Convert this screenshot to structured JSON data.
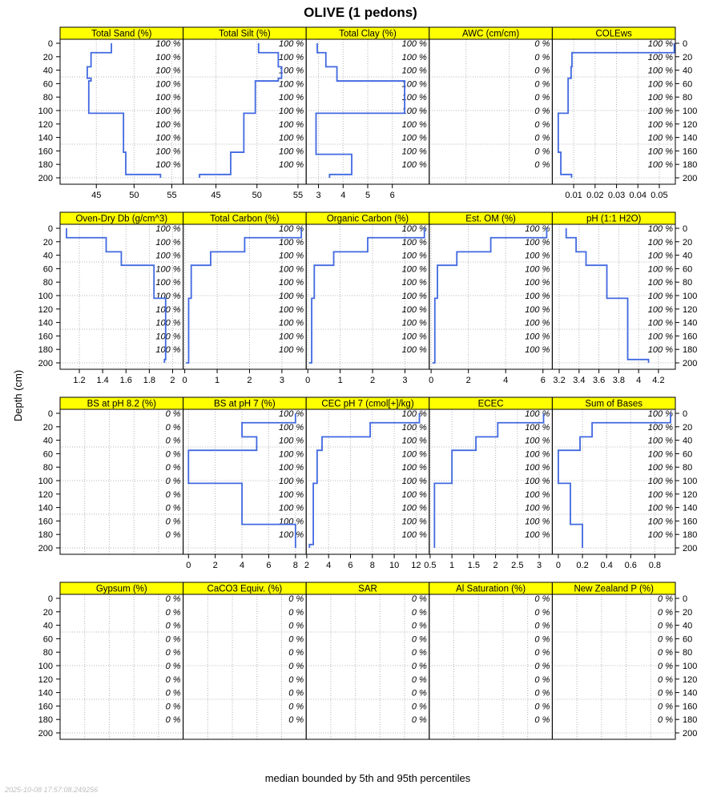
{
  "chart_data": {
    "type": "line",
    "title": "OLIVE (1 pedons)",
    "ylabel": "Depth (cm)",
    "caption": "median bounded by 5th and 95th percentiles",
    "timestamp": "2025-10-08 17:57:08.249256",
    "line_color": "#4169e1",
    "strip_color": "#ffff00",
    "grid": true,
    "ylim": [
      0,
      200
    ],
    "y_ticks": [
      0,
      20,
      40,
      60,
      80,
      100,
      120,
      140,
      160,
      180,
      200
    ],
    "label_depths": [
      0,
      20,
      40,
      60,
      80,
      100,
      120,
      140,
      160,
      180
    ],
    "panels": [
      {
        "label": "Total Sand (%)",
        "xlim": [
          40.2,
          56.5
        ],
        "xticks": [
          45,
          50,
          55
        ],
        "xgrid": [
          45,
          50,
          55
        ],
        "pct": "100 %",
        "steps": [
          [
            0,
            47
          ],
          [
            14,
            44.3
          ],
          [
            35,
            43.8
          ],
          [
            52,
            44.3
          ],
          [
            56,
            44
          ],
          [
            104,
            48.6
          ],
          [
            162,
            48.9
          ],
          [
            195,
            53.5
          ],
          [
            200,
            53.5
          ]
        ]
      },
      {
        "label": "Total Silt (%)",
        "xlim": [
          41,
          56
        ],
        "xticks": [
          45,
          50,
          55
        ],
        "xgrid": [
          45,
          50,
          55
        ],
        "pct": "100 %",
        "steps": [
          [
            0,
            50.2
          ],
          [
            14,
            52.6
          ],
          [
            35,
            53
          ],
          [
            52,
            52.6
          ],
          [
            56,
            49.8
          ],
          [
            104,
            48.4
          ],
          [
            162,
            46.8
          ],
          [
            195,
            43
          ],
          [
            200,
            43
          ]
        ]
      },
      {
        "label": "Total Clay (%)",
        "xlim": [
          2.5,
          7.5
        ],
        "xticks": [
          3,
          4,
          5,
          6
        ],
        "xgrid": [
          3,
          4,
          5,
          6
        ],
        "pct": "100 %",
        "steps": [
          [
            0,
            2.95
          ],
          [
            14,
            3.3
          ],
          [
            35,
            3.75
          ],
          [
            56,
            6.5
          ],
          [
            104,
            2.9
          ],
          [
            165,
            4.35
          ],
          [
            195,
            3.45
          ],
          [
            200,
            3.45
          ]
        ]
      },
      {
        "label": "AWC (cm/cm)",
        "xlim": [
          0,
          1
        ],
        "xticks": [],
        "xgrid": [
          0.3,
          0.65
        ],
        "pct": "0 %",
        "steps": []
      },
      {
        "label": "COLEws",
        "xlim": [
          0,
          0.0575
        ],
        "xticks": [
          0.01,
          0.02,
          0.03,
          0.04,
          0.05
        ],
        "xgrid": [
          0.01,
          0.02,
          0.03,
          0.04,
          0.05
        ],
        "pct": "100 %",
        "steps": [
          [
            0,
            0.057
          ],
          [
            14,
            0.0092
          ],
          [
            35,
            0.0088
          ],
          [
            52,
            0.0074
          ],
          [
            104,
            0.0028
          ],
          [
            162,
            0.004
          ],
          [
            195,
            0.009
          ],
          [
            200,
            0.009
          ]
        ]
      },
      {
        "label": "Oven-Dry Db (g/cm^3)",
        "xlim": [
          1.035,
          2.09
        ],
        "xticks": [
          1.2,
          1.4,
          1.6,
          1.8,
          2.0
        ],
        "xgrid": [
          1.2,
          1.4,
          1.6,
          1.8,
          2.0
        ],
        "pct": "100 %",
        "steps": [
          [
            0,
            1.09
          ],
          [
            14,
            1.43
          ],
          [
            35,
            1.56
          ],
          [
            55,
            1.84
          ],
          [
            104,
            1.94
          ],
          [
            195,
            1.93
          ],
          [
            200,
            1.93
          ]
        ]
      },
      {
        "label": "Total Carbon (%)",
        "xlim": [
          -0.05,
          3.75
        ],
        "xticks": [
          0,
          1,
          2,
          3
        ],
        "xgrid": [
          0,
          1,
          2,
          3
        ],
        "pct": "100 %",
        "steps": [
          [
            0,
            3.6
          ],
          [
            14,
            1.85
          ],
          [
            35,
            0.8
          ],
          [
            55,
            0.2
          ],
          [
            104,
            0.12
          ],
          [
            200,
            0.04
          ]
        ]
      },
      {
        "label": "Organic Carbon (%)",
        "xlim": [
          -0.05,
          3.75
        ],
        "xticks": [
          0,
          1,
          2,
          3
        ],
        "xgrid": [
          0,
          1,
          2,
          3
        ],
        "pct": "100 %",
        "steps": [
          [
            0,
            3.6
          ],
          [
            14,
            1.85
          ],
          [
            35,
            0.8
          ],
          [
            55,
            0.2
          ],
          [
            104,
            0.12
          ],
          [
            200,
            0.04
          ]
        ]
      },
      {
        "label": "Est. OM (%)",
        "xlim": [
          -0.1,
          6.5
        ],
        "xticks": [
          0,
          2,
          4,
          6
        ],
        "xgrid": [
          0,
          2,
          4,
          6
        ],
        "pct": "100 %",
        "steps": [
          [
            0,
            6.2
          ],
          [
            14,
            3.2
          ],
          [
            35,
            1.38
          ],
          [
            55,
            0.34
          ],
          [
            104,
            0.2
          ],
          [
            200,
            0.08
          ]
        ]
      },
      {
        "label": "pH (1:1 H2O)",
        "xlim": [
          3.13,
          4.37
        ],
        "xticks": [
          3.2,
          3.4,
          3.6,
          3.8,
          4.0,
          4.2
        ],
        "xgrid": [
          3.2,
          3.4,
          3.6,
          3.8,
          4.0,
          4.2
        ],
        "pct": "100 %",
        "steps": [
          [
            0,
            3.27
          ],
          [
            14,
            3.37
          ],
          [
            35,
            3.47
          ],
          [
            55,
            3.68
          ],
          [
            104,
            3.89
          ],
          [
            195,
            4.1
          ],
          [
            200,
            4.1
          ]
        ]
      },
      {
        "label": "BS at pH 8.2 (%)",
        "xlim": [
          0,
          1
        ],
        "xticks": [],
        "xgrid": [
          0.2,
          0.4,
          0.6,
          0.8
        ],
        "pct": "0 %",
        "steps": []
      },
      {
        "label": "BS at pH 7 (%)",
        "xlim": [
          -0.4,
          8.8
        ],
        "xticks": [
          0,
          2,
          4,
          6,
          8
        ],
        "xgrid": [
          0,
          2,
          4,
          6,
          8
        ],
        "pct": "100 %",
        "steps": [
          [
            0,
            8
          ],
          [
            14,
            4
          ],
          [
            35,
            5.1
          ],
          [
            55,
            0
          ],
          [
            104,
            4
          ],
          [
            165,
            8
          ],
          [
            200,
            8
          ]
        ]
      },
      {
        "label": "CEC pH 7 (cmol[+]/kg)",
        "xlim": [
          1.95,
          13.2
        ],
        "xticks": [
          2,
          4,
          6,
          8,
          10,
          12
        ],
        "xgrid": [
          4,
          6,
          8,
          10,
          12
        ],
        "pct": "100 %",
        "steps": [
          [
            0,
            12.3
          ],
          [
            14,
            7.8
          ],
          [
            35,
            3.4
          ],
          [
            55,
            2.95
          ],
          [
            104,
            2.6
          ],
          [
            195,
            2.25
          ],
          [
            200,
            2.25
          ]
        ]
      },
      {
        "label": "ECEC",
        "xlim": [
          0.48,
          3.3
        ],
        "xticks": [
          0.5,
          1.0,
          1.5,
          2.0,
          2.5,
          3.0
        ],
        "xgrid": [
          0.5,
          1.0,
          1.5,
          2.0,
          2.5,
          3.0
        ],
        "pct": "100 %",
        "steps": [
          [
            0,
            3.1
          ],
          [
            14,
            2.05
          ],
          [
            35,
            1.55
          ],
          [
            55,
            1.0
          ],
          [
            104,
            0.6
          ],
          [
            200,
            0.6
          ]
        ]
      },
      {
        "label": "Sum of Bases",
        "xlim": [
          -0.05,
          0.97
        ],
        "xticks": [
          0.0,
          0.2,
          0.4,
          0.6,
          0.8
        ],
        "xgrid": [
          0.2,
          0.4,
          0.6,
          0.8
        ],
        "pct": "100 %",
        "steps": [
          [
            0,
            0.93
          ],
          [
            14,
            0.28
          ],
          [
            35,
            0.18
          ],
          [
            55,
            0
          ],
          [
            104,
            0.1
          ],
          [
            165,
            0.2
          ],
          [
            200,
            0.2
          ]
        ]
      },
      {
        "label": "Gypsum (%)",
        "xlim": [
          0,
          1
        ],
        "xticks": [],
        "xgrid": [
          0.2,
          0.4,
          0.6,
          0.8
        ],
        "pct": "0 %",
        "steps": []
      },
      {
        "label": "CaCO3 Equiv. (%)",
        "xlim": [
          0,
          1
        ],
        "xticks": [],
        "xgrid": [
          0.2,
          0.4,
          0.6,
          0.8
        ],
        "pct": "0 %",
        "steps": []
      },
      {
        "label": "SAR",
        "xlim": [
          0,
          1
        ],
        "xticks": [],
        "xgrid": [
          0.2,
          0.4,
          0.6,
          0.8
        ],
        "pct": "0 %",
        "steps": []
      },
      {
        "label": "Al Saturation (%)",
        "xlim": [
          0,
          1
        ],
        "xticks": [],
        "xgrid": [
          0.2,
          0.4,
          0.6,
          0.8
        ],
        "pct": "0 %",
        "steps": []
      },
      {
        "label": "New Zealand P (%)",
        "xlim": [
          0,
          1
        ],
        "xticks": [],
        "xgrid": [
          0.2,
          0.4,
          0.6,
          0.8
        ],
        "pct": "0 %",
        "steps": []
      }
    ]
  }
}
